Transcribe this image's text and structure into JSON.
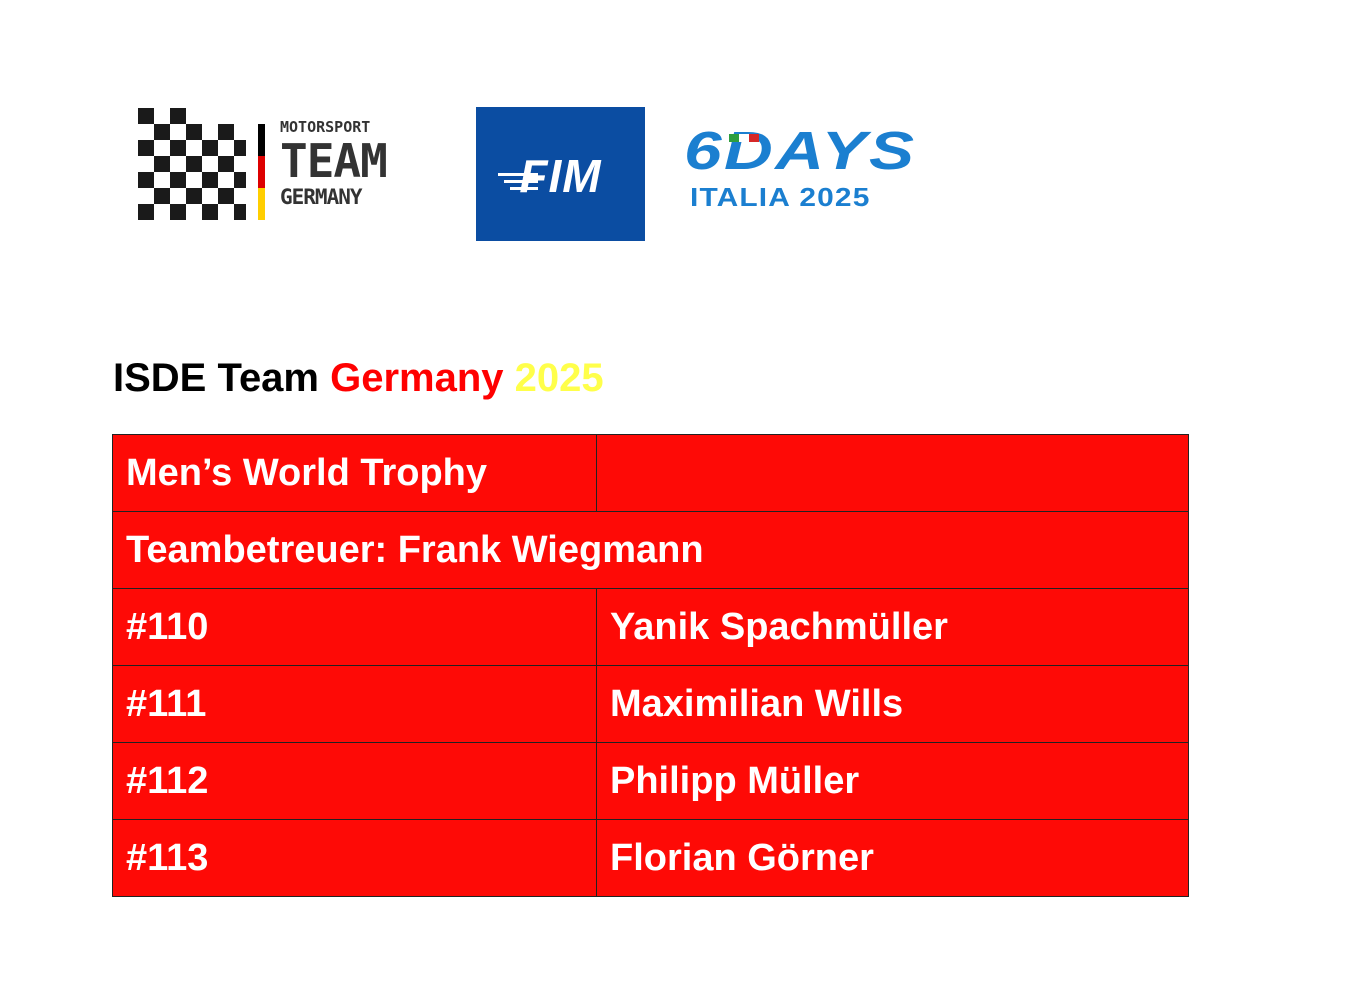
{
  "logos": {
    "motorsport_team_germany": {
      "line1": "MOTORSPORT",
      "line2": "TEAM",
      "line3": "GERMANY",
      "flag_colors": [
        "#000000",
        "#dd0000",
        "#ffce00"
      ]
    },
    "fim": {
      "text": "FIM",
      "background": "#0b4da2"
    },
    "six_days": {
      "line1": "6DAYS",
      "line2": "ITALIA 2025",
      "color": "#1b7fd0"
    }
  },
  "heading": {
    "part1": "ISDE Team",
    "part2": "Germany",
    "part3": "2025"
  },
  "table": {
    "title": "Men’s World Trophy",
    "title_value": "",
    "manager": "Teambetreuer: Frank Wiegmann",
    "riders": [
      {
        "number": "#110",
        "name": "Yanik Spachmüller"
      },
      {
        "number": "#111",
        "name": "Maximilian Wills"
      },
      {
        "number": "#112",
        "name": "Philipp Müller"
      },
      {
        "number": "#113",
        "name": "Florian Görner"
      }
    ],
    "background": "#fe0a06"
  }
}
